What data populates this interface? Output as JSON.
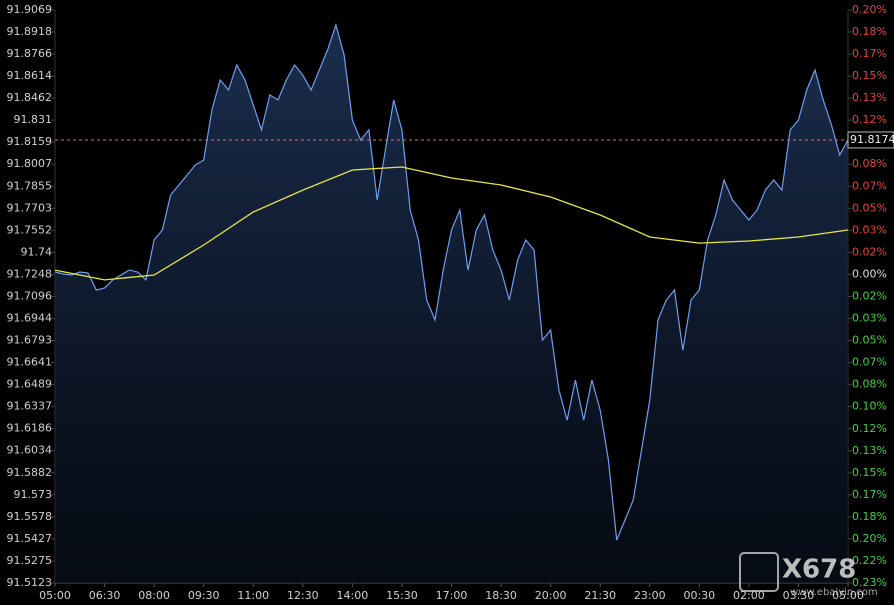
{
  "chart_data": {
    "type": "line",
    "xlim": [
      0,
      1440
    ],
    "xticks": [
      {
        "value": 0,
        "label": "05:00"
      },
      {
        "value": 90,
        "label": "06:30"
      },
      {
        "value": 180,
        "label": "08:00"
      },
      {
        "value": 270,
        "label": "09:30"
      },
      {
        "value": 360,
        "label": "11:00"
      },
      {
        "value": 450,
        "label": "12:30"
      },
      {
        "value": 540,
        "label": "14:00"
      },
      {
        "value": 630,
        "label": "15:30"
      },
      {
        "value": 720,
        "label": "17:00"
      },
      {
        "value": 810,
        "label": "18:30"
      },
      {
        "value": 900,
        "label": "20:00"
      },
      {
        "value": 990,
        "label": "21:30"
      },
      {
        "value": 1080,
        "label": "23:00"
      },
      {
        "value": 1170,
        "label": "00:30"
      },
      {
        "value": 1260,
        "label": "02:00"
      },
      {
        "value": 1350,
        "label": "03:30"
      },
      {
        "value": 1440,
        "label": "05:00"
      }
    ],
    "ylim": [
      91.5123,
      91.9069
    ],
    "yticks": [
      91.9069,
      91.8918,
      91.8766,
      91.8614,
      91.8462,
      91.831,
      91.8159,
      91.8007,
      91.7855,
      91.7703,
      91.7552,
      91.74,
      91.7248,
      91.7096,
      91.6944,
      91.6793,
      91.6641,
      91.6489,
      91.6337,
      91.6186,
      91.6034,
      91.5882,
      91.573,
      91.5578,
      91.5427,
      91.5275,
      91.5123
    ],
    "y2lim": [
      -0.2317,
      0.1986
    ],
    "y2ticks": [
      {
        "value": 0.1986,
        "label": "0.20%"
      },
      {
        "value": 0.1821,
        "label": "0.18%"
      },
      {
        "value": 0.1655,
        "label": "0.17%"
      },
      {
        "value": 0.149,
        "label": "0.15%"
      },
      {
        "value": 0.1324,
        "label": "0.13%"
      },
      {
        "value": 0.1159,
        "label": "0.12%"
      },
      {
        "value": 0.0993,
        "label": "0.10%"
      },
      {
        "value": 0.0828,
        "label": "0.08%"
      },
      {
        "value": 0.0662,
        "label": "0.07%"
      },
      {
        "value": 0.0497,
        "label": "0.05%"
      },
      {
        "value": 0.0331,
        "label": "0.03%"
      },
      {
        "value": 0.0166,
        "label": "0.02%"
      },
      {
        "value": 0,
        "label": "0.00%"
      },
      {
        "value": -0.0166,
        "label": "0.02%"
      },
      {
        "value": -0.0331,
        "label": "0.03%"
      },
      {
        "value": -0.0497,
        "label": "0.05%"
      },
      {
        "value": -0.0662,
        "label": "0.07%"
      },
      {
        "value": -0.0828,
        "label": "0.08%"
      },
      {
        "value": -0.0993,
        "label": "0.10%"
      },
      {
        "value": -0.1159,
        "label": "0.12%"
      },
      {
        "value": -0.1324,
        "label": "0.13%"
      },
      {
        "value": -0.149,
        "label": "0.15%"
      },
      {
        "value": -0.1655,
        "label": "0.17%"
      },
      {
        "value": -0.1821,
        "label": "0.18%"
      },
      {
        "value": -0.1986,
        "label": "0.20%"
      },
      {
        "value": -0.2152,
        "label": "0.22%"
      },
      {
        "value": -0.2317,
        "label": "0.23%"
      }
    ],
    "up_color": "#e8413c",
    "down_color": "#3fd23f",
    "flat_color": "#dddddd",
    "series": [
      {
        "color": "#6f9ef0",
        "x": [
          0,
          15,
          30,
          45,
          60,
          75,
          90,
          105,
          120,
          135,
          150,
          165,
          180,
          195,
          210,
          225,
          240,
          255,
          270,
          285,
          300,
          315,
          330,
          345,
          360,
          375,
          390,
          405,
          420,
          435,
          450,
          465,
          480,
          495,
          510,
          525,
          540,
          555,
          570,
          585,
          600,
          615,
          630,
          645,
          660,
          675,
          690,
          705,
          720,
          735,
          750,
          765,
          780,
          795,
          810,
          825,
          840,
          855,
          870,
          885,
          900,
          915,
          930,
          945,
          960,
          975,
          990,
          1005,
          1020,
          1035,
          1050,
          1065,
          1080,
          1095,
          1110,
          1125,
          1140,
          1155,
          1170,
          1185,
          1200,
          1215,
          1230,
          1245,
          1260,
          1275,
          1290,
          1305,
          1320,
          1335,
          1350,
          1365,
          1380,
          1395,
          1410,
          1425,
          1440
        ],
        "values": [
          91.7265,
          91.7251,
          91.7244,
          91.7265,
          91.7258,
          91.7141,
          91.7154,
          91.721,
          91.7244,
          91.7278,
          91.7265,
          91.721,
          91.7485,
          91.7554,
          91.7795,
          91.7864,
          91.7933,
          91.8002,
          91.8036,
          91.838,
          91.8587,
          91.8518,
          91.869,
          91.8587,
          91.8415,
          91.8243,
          91.8484,
          91.8449,
          91.8587,
          91.869,
          91.8621,
          91.8518,
          91.8656,
          91.8794,
          91.8966,
          91.8759,
          91.8311,
          91.8174,
          91.8243,
          91.7761,
          91.8105,
          91.8449,
          91.8243,
          91.7692,
          91.7485,
          91.7072,
          91.6934,
          91.7278,
          91.7554,
          91.7692,
          91.7278,
          91.7554,
          91.7657,
          91.7416,
          91.7278,
          91.7072,
          91.7347,
          91.7485,
          91.7416,
          91.6796,
          91.6865,
          91.6452,
          91.6245,
          91.6521,
          91.6245,
          91.6521,
          91.6314,
          91.597,
          91.5419,
          91.5557,
          91.5694,
          91.6039,
          91.6383,
          91.6934,
          91.7072,
          91.7141,
          91.6727,
          91.7072,
          91.7141,
          91.7485,
          91.7657,
          91.7898,
          91.7761,
          91.7692,
          91.7623,
          91.7692,
          91.7829,
          91.7898,
          91.7829,
          91.8243,
          91.8311,
          91.8518,
          91.8656,
          91.8449,
          91.8277,
          91.8071,
          91.8174
        ]
      },
      {
        "color": "#e6e640",
        "x": [
          0,
          90,
          180,
          270,
          360,
          450,
          540,
          630,
          720,
          810,
          900,
          990,
          1080,
          1170,
          1260,
          1350,
          1440
        ],
        "values": [
          91.7278,
          91.721,
          91.7244,
          91.7451,
          91.7678,
          91.7829,
          91.7967,
          91.7988,
          91.7912,
          91.7864,
          91.7781,
          91.7657,
          91.7506,
          91.7464,
          91.7478,
          91.7506,
          91.7554
        ]
      }
    ],
    "watermark": "X678",
    "watermark_url": "www.ebaiyin.com"
  }
}
